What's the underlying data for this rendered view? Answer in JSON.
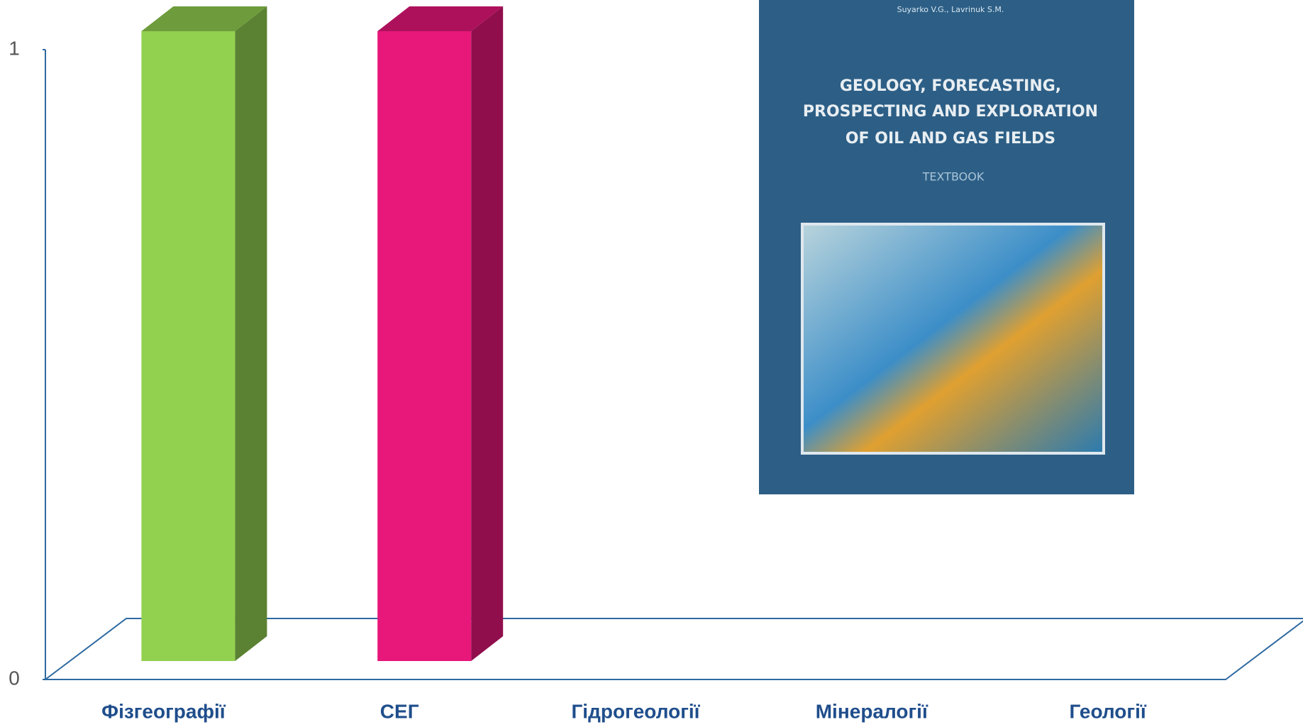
{
  "chart_data": {
    "type": "bar3d",
    "categories": [
      "Фізгеографії",
      "СЕГ",
      "Гідрогеології",
      "Мінералогії",
      "Геології"
    ],
    "values": [
      1,
      1,
      0,
      0,
      0
    ],
    "colors": [
      "#92d050",
      "#e8177a",
      "#4472c4",
      "#4472c4",
      "#4472c4"
    ],
    "ylim": [
      0,
      1
    ],
    "yticks": [
      0,
      1
    ]
  },
  "cover": {
    "authors": "Suyarko V.G., Lavrinuk S.M.",
    "title_lines": [
      "GEOLOGY, FORECASTING,",
      "PROSPECTING AND EXPLORATION",
      "OF OIL AND GAS FIELDS"
    ],
    "subtitle": "TEXTBOOK"
  }
}
